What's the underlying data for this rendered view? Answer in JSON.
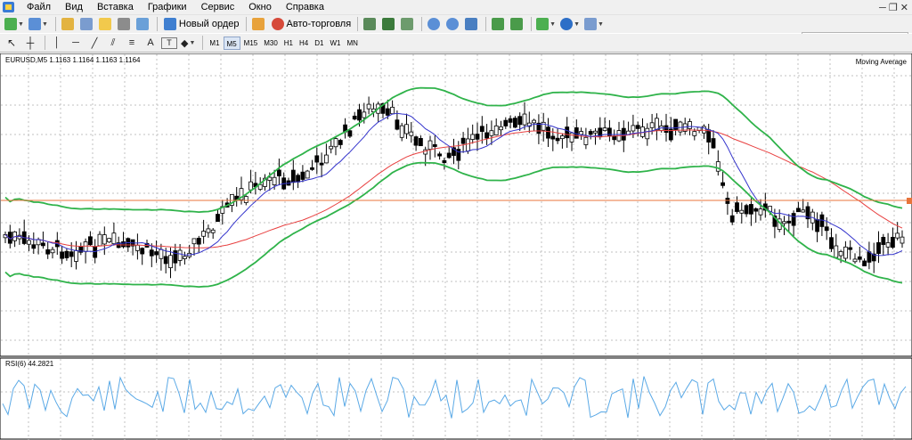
{
  "menu": [
    "Файл",
    "Вид",
    "Вставка",
    "Графики",
    "Сервис",
    "Окно",
    "Справка"
  ],
  "toolbar": {
    "new_order_label": "Новый ордер",
    "auto_trading_label": "Авто-торговля",
    "timeframes": [
      "M1",
      "M5",
      "M15",
      "M30",
      "H1",
      "H4",
      "D1",
      "W1",
      "MN"
    ],
    "active_timeframe": "M5",
    "text_tool_label": "A"
  },
  "chart": {
    "symbol_header": "EURUSD,M5  1.1163 1.1164 1.1163 1.1164",
    "indicator_label": "Moving Average",
    "rsi_label": "RSI(6) 44.2821"
  },
  "colors": {
    "bull_fill": "#ffffff",
    "bear_fill": "#000000",
    "bollinger": "#2fb34a",
    "ma_slow": "#e84040",
    "ma_fast": "#3333cc",
    "price_line": "#e8743b",
    "rsi_line": "#5aa9e6",
    "grid": "#c0c0c0"
  }
}
